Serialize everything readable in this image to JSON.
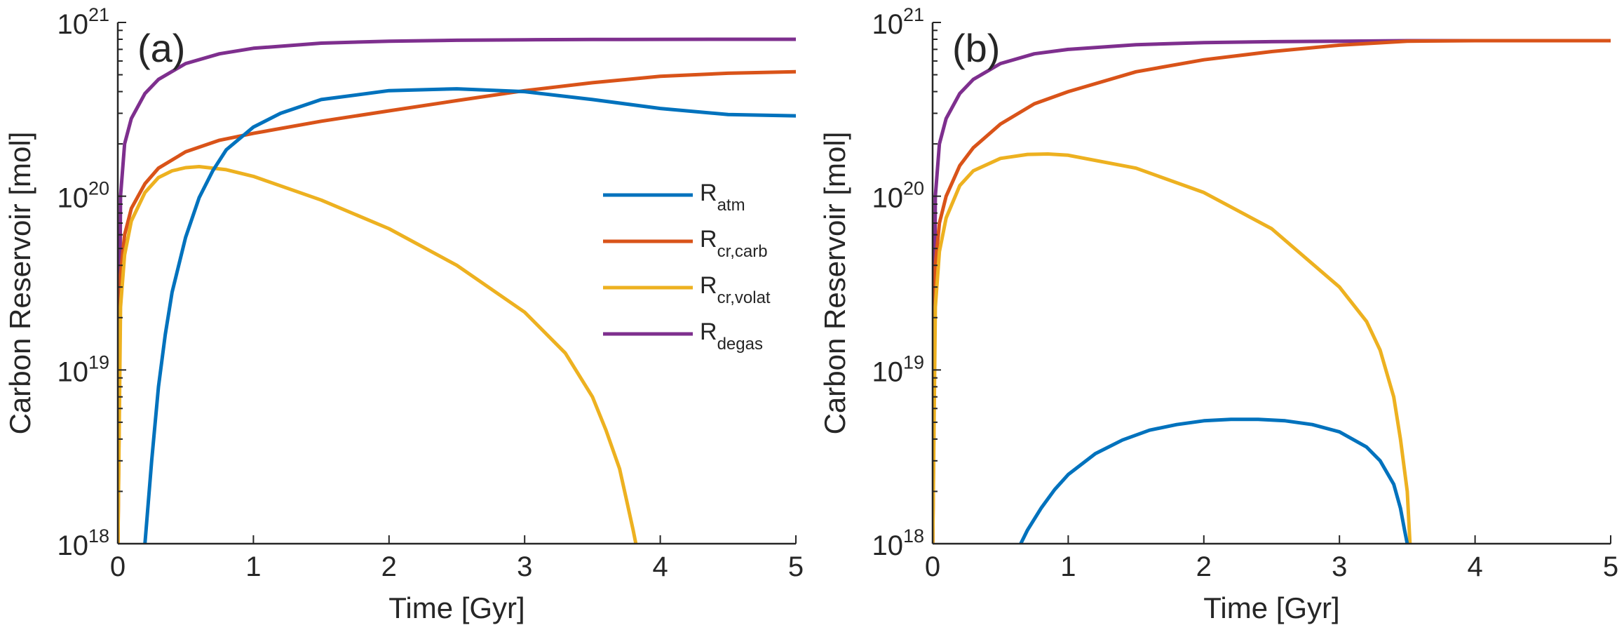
{
  "colors": {
    "R_atm": "#0072BD",
    "R_cr_carb": "#D95319",
    "R_cr_volat": "#EDB120",
    "R_degas": "#7E2F8E",
    "axis": "#262626"
  },
  "chart_data": [
    {
      "type": "line",
      "panel_label": "(a)",
      "xlabel": "Time [Gyr]",
      "ylabel": "Carbon Reservoir [mol]",
      "xlim": [
        0,
        5
      ],
      "ylim": [
        1e+18,
        1e+21
      ],
      "yscale": "log",
      "xticks": [
        0,
        1,
        2,
        3,
        4,
        5
      ],
      "xtick_labels": [
        "0",
        "1",
        "2",
        "3",
        "4",
        "5"
      ],
      "yticks": [
        {
          "value": 1e+18,
          "base": "10",
          "exp": "18"
        },
        {
          "value": 1e+19,
          "base": "10",
          "exp": "19"
        },
        {
          "value": 1e+20,
          "base": "10",
          "exp": "20"
        },
        {
          "value": 1e+21,
          "base": "10",
          "exp": "21"
        }
      ],
      "grid": false,
      "legend": {
        "position": "right-middle",
        "entries": [
          {
            "key": "R_atm",
            "base": "R",
            "sub": "atm"
          },
          {
            "key": "R_cr_carb",
            "base": "R",
            "sub": "cr,carb"
          },
          {
            "key": "R_cr_volat",
            "base": "R",
            "sub": "cr,volat"
          },
          {
            "key": "R_degas",
            "base": "R",
            "sub": "degas"
          }
        ]
      },
      "series": [
        {
          "key": "R_degas",
          "x": [
            0.001,
            0.02,
            0.05,
            0.1,
            0.2,
            0.3,
            0.5,
            0.75,
            1.0,
            1.5,
            2.0,
            2.5,
            3.0,
            3.5,
            4.0,
            4.5,
            5.0
          ],
          "y": [
            1e+18,
            1e+20,
            2e+20,
            2.8e+20,
            3.9e+20,
            4.7e+20,
            5.8e+20,
            6.6e+20,
            7.1e+20,
            7.6e+20,
            7.8e+20,
            7.9e+20,
            7.95e+20,
            7.98e+20,
            7.99e+20,
            8e+20,
            8e+20
          ]
        },
        {
          "key": "R_cr_carb",
          "x": [
            0.001,
            0.02,
            0.05,
            0.1,
            0.2,
            0.3,
            0.5,
            0.75,
            1.0,
            1.5,
            2.0,
            2.5,
            3.0,
            3.5,
            4.0,
            4.5,
            5.0
          ],
          "y": [
            1e+18,
            3.5e+19,
            6e+19,
            8.5e+19,
            1.18e+20,
            1.45e+20,
            1.8e+20,
            2.1e+20,
            2.3e+20,
            2.7e+20,
            3.1e+20,
            3.55e+20,
            4.05e+20,
            4.5e+20,
            4.9e+20,
            5.1e+20,
            5.2e+20
          ]
        },
        {
          "key": "R_cr_volat",
          "x": [
            0.001,
            0.02,
            0.05,
            0.1,
            0.2,
            0.3,
            0.4,
            0.5,
            0.6,
            0.8,
            1.0,
            1.5,
            2.0,
            2.5,
            3.0,
            3.3,
            3.5,
            3.6,
            3.7,
            3.75,
            3.8,
            3.82
          ],
          "y": [
            1e+18,
            2.3e+19,
            4.6e+19,
            7.2e+19,
            1.05e+20,
            1.28e+20,
            1.4e+20,
            1.46e+20,
            1.48e+20,
            1.42e+20,
            1.3e+20,
            9.5e+19,
            6.5e+19,
            4e+19,
            2.15e+19,
            1.25e+19,
            7e+18,
            4.5e+18,
            2.7e+18,
            1.8e+18,
            1.2e+18,
            1e+18
          ]
        },
        {
          "key": "R_atm",
          "x": [
            0.2,
            0.25,
            0.3,
            0.35,
            0.4,
            0.5,
            0.6,
            0.7,
            0.8,
            1.0,
            1.2,
            1.5,
            2.0,
            2.5,
            3.0,
            3.5,
            4.0,
            4.5,
            5.0
          ],
          "y": [
            1e+18,
            3e+18,
            8e+18,
            1.6e+19,
            2.8e+19,
            5.8e+19,
            9.8e+19,
            1.4e+20,
            1.85e+20,
            2.5e+20,
            3e+20,
            3.6e+20,
            4.05e+20,
            4.15e+20,
            4e+20,
            3.6e+20,
            3.2e+20,
            2.95e+20,
            2.9e+20
          ]
        }
      ]
    },
    {
      "type": "line",
      "panel_label": "(b)",
      "xlabel": "Time [Gyr]",
      "ylabel": "Carbon Reservoir [mol]",
      "xlim": [
        0,
        5
      ],
      "ylim": [
        1e+18,
        1e+21
      ],
      "yscale": "log",
      "xticks": [
        0,
        1,
        2,
        3,
        4,
        5
      ],
      "xtick_labels": [
        "0",
        "1",
        "2",
        "3",
        "4",
        "5"
      ],
      "yticks": [
        {
          "value": 1e+18,
          "base": "10",
          "exp": "18"
        },
        {
          "value": 1e+19,
          "base": "10",
          "exp": "19"
        },
        {
          "value": 1e+20,
          "base": "10",
          "exp": "20"
        },
        {
          "value": 1e+21,
          "base": "10",
          "exp": "21"
        }
      ],
      "grid": false,
      "series": [
        {
          "key": "R_degas",
          "x": [
            0.001,
            0.02,
            0.05,
            0.1,
            0.2,
            0.3,
            0.5,
            0.75,
            1.0,
            1.5,
            2.0,
            2.5,
            3.0,
            3.5,
            4.0,
            4.5,
            5.0
          ],
          "y": [
            1e+18,
            1e+20,
            2e+20,
            2.8e+20,
            3.9e+20,
            4.7e+20,
            5.8e+20,
            6.6e+20,
            7e+20,
            7.45e+20,
            7.65e+20,
            7.75e+20,
            7.8e+20,
            7.85e+20,
            7.85e+20,
            7.85e+20,
            7.85e+20
          ]
        },
        {
          "key": "R_cr_carb",
          "x": [
            0.001,
            0.02,
            0.05,
            0.1,
            0.2,
            0.3,
            0.5,
            0.75,
            1.0,
            1.5,
            2.0,
            2.5,
            3.0,
            3.5,
            4.0,
            4.5,
            5.0
          ],
          "y": [
            1e+18,
            4e+19,
            7e+19,
            1e+20,
            1.5e+20,
            1.9e+20,
            2.6e+20,
            3.4e+20,
            4e+20,
            5.2e+20,
            6.1e+20,
            6.8e+20,
            7.4e+20,
            7.8e+20,
            7.85e+20,
            7.85e+20,
            7.85e+20
          ]
        },
        {
          "key": "R_cr_volat",
          "x": [
            0.001,
            0.02,
            0.05,
            0.1,
            0.2,
            0.3,
            0.5,
            0.7,
            0.85,
            1.0,
            1.5,
            2.0,
            2.5,
            3.0,
            3.2,
            3.3,
            3.4,
            3.45,
            3.5,
            3.52
          ],
          "y": [
            1e+18,
            2.3e+19,
            4.8e+19,
            7.5e+19,
            1.15e+20,
            1.4e+20,
            1.65e+20,
            1.74e+20,
            1.75e+20,
            1.72e+20,
            1.45e+20,
            1.05e+20,
            6.5e+19,
            3e+19,
            1.9e+19,
            1.3e+19,
            7e+18,
            4e+18,
            2e+18,
            1e+18
          ]
        },
        {
          "key": "R_atm",
          "x": [
            0.65,
            0.7,
            0.8,
            0.9,
            1.0,
            1.2,
            1.4,
            1.6,
            1.8,
            2.0,
            2.2,
            2.4,
            2.6,
            2.8,
            3.0,
            3.2,
            3.3,
            3.4,
            3.45,
            3.48,
            3.5
          ],
          "y": [
            1e+18,
            1.2e+18,
            1.6e+18,
            2.05e+18,
            2.5e+18,
            3.3e+18,
            3.95e+18,
            4.5e+18,
            4.85e+18,
            5.1e+18,
            5.2e+18,
            5.2e+18,
            5.1e+18,
            4.85e+18,
            4.4e+18,
            3.6e+18,
            3e+18,
            2.2e+18,
            1.6e+18,
            1.2e+18,
            1e+18
          ]
        }
      ]
    }
  ]
}
